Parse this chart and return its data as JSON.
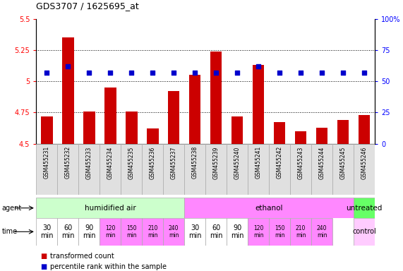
{
  "title": "GDS3707 / 1625695_at",
  "samples": [
    "GSM455231",
    "GSM455232",
    "GSM455233",
    "GSM455234",
    "GSM455235",
    "GSM455236",
    "GSM455237",
    "GSM455238",
    "GSM455239",
    "GSM455240",
    "GSM455241",
    "GSM455242",
    "GSM455243",
    "GSM455244",
    "GSM455245",
    "GSM455246"
  ],
  "bar_values": [
    4.72,
    5.35,
    4.76,
    4.95,
    4.76,
    4.62,
    4.92,
    5.05,
    5.24,
    4.72,
    5.13,
    4.67,
    4.6,
    4.63,
    4.69,
    4.73
  ],
  "percentile_values": [
    57,
    62,
    57,
    57,
    57,
    57,
    57,
    57,
    57,
    57,
    62,
    57,
    57,
    57,
    57,
    57
  ],
  "bar_bottom": 4.5,
  "ylim_left": [
    4.5,
    5.5
  ],
  "ylim_right": [
    0,
    100
  ],
  "yticks_left": [
    4.5,
    4.75,
    5.0,
    5.25,
    5.5
  ],
  "yticks_left_labels": [
    "4.5",
    "4.75",
    "5",
    "5.25",
    "5.5"
  ],
  "yticks_right": [
    0,
    25,
    50,
    75,
    100
  ],
  "yticks_right_labels": [
    "0",
    "25",
    "50",
    "75",
    "100%"
  ],
  "bar_color": "#cc0000",
  "dot_color": "#0000cc",
  "agent_groups": [
    {
      "start": 0,
      "end": 7,
      "label": "humidified air",
      "color": "#ccffcc"
    },
    {
      "start": 7,
      "end": 15,
      "label": "ethanol",
      "color": "#ff88ff"
    },
    {
      "start": 15,
      "end": 16,
      "label": "untreated",
      "color": "#66ff66"
    }
  ],
  "time_labels": [
    "30\nmin",
    "60\nmin",
    "90\nmin",
    "120\nmin",
    "150\nmin",
    "210\nmin",
    "240\nmin",
    "30\nmin",
    "60\nmin",
    "90\nmin",
    "120\nmin",
    "150\nmin",
    "210\nmin",
    "240\nmin",
    "control"
  ],
  "time_colors": [
    "#ffffff",
    "#ffffff",
    "#ffffff",
    "#ff88ff",
    "#ff88ff",
    "#ff88ff",
    "#ff88ff",
    "#ffffff",
    "#ffffff",
    "#ffffff",
    "#ff88ff",
    "#ff88ff",
    "#ff88ff",
    "#ff88ff",
    "#ffccff"
  ],
  "time_positions": [
    0,
    1,
    2,
    3,
    4,
    5,
    6,
    7,
    8,
    9,
    10,
    11,
    12,
    13,
    15
  ],
  "legend_bar_color": "#cc0000",
  "legend_dot_color": "#0000cc",
  "legend_bar_label": "transformed count",
  "legend_dot_label": "percentile rank within the sample"
}
